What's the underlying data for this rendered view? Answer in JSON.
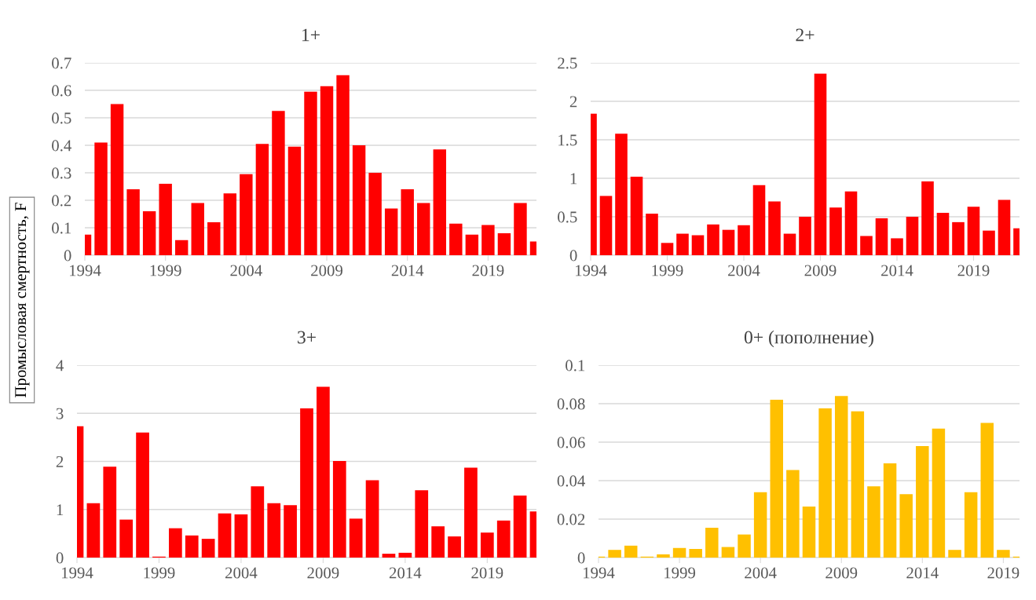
{
  "chart_data": [
    {
      "type": "bar",
      "title": "1+",
      "ylabel": "Промысловая смертность, F",
      "x": [
        1994,
        1995,
        1996,
        1997,
        1998,
        1999,
        2000,
        2001,
        2002,
        2003,
        2004,
        2005,
        2006,
        2007,
        2008,
        2009,
        2010,
        2011,
        2012,
        2013,
        2014,
        2015,
        2016,
        2017,
        2018,
        2019,
        2020,
        2021,
        2022
      ],
      "series": [
        {
          "color": "#ff0000",
          "values": [
            0.075,
            0.41,
            0.55,
            0.24,
            0.16,
            0.26,
            0.055,
            0.19,
            0.12,
            0.225,
            0.295,
            0.405,
            0.525,
            0.395,
            0.595,
            0.615,
            0.655,
            0.4,
            0.3,
            0.17,
            0.24,
            0.19,
            0.385,
            0.115,
            0.075,
            0.11,
            0.08,
            0.19,
            0.05
          ]
        }
      ],
      "xlim": [
        1994,
        2022
      ],
      "xticks": [
        1994,
        1999,
        2004,
        2009,
        2014,
        2019
      ],
      "ylim": [
        0,
        0.7
      ],
      "yticks": [
        0,
        0.1,
        0.2,
        0.3,
        0.4,
        0.5,
        0.6,
        0.7
      ],
      "grid": "y"
    },
    {
      "type": "bar",
      "title": "2+",
      "x": [
        1994,
        1995,
        1996,
        1997,
        1998,
        1999,
        2000,
        2001,
        2002,
        2003,
        2004,
        2005,
        2006,
        2007,
        2008,
        2009,
        2010,
        2011,
        2012,
        2013,
        2014,
        2015,
        2016,
        2017,
        2018,
        2019,
        2020,
        2021,
        2022
      ],
      "series": [
        {
          "color": "#ff0000",
          "values": [
            1.84,
            0.77,
            1.58,
            1.02,
            0.54,
            0.16,
            0.28,
            0.26,
            0.4,
            0.33,
            0.39,
            0.91,
            0.7,
            0.28,
            0.5,
            2.36,
            0.62,
            0.83,
            0.25,
            0.48,
            0.22,
            0.5,
            0.96,
            0.55,
            0.43,
            0.63,
            0.32,
            0.72,
            0.35
          ]
        }
      ],
      "xlim": [
        1994,
        2022
      ],
      "xticks": [
        1994,
        1999,
        2004,
        2009,
        2014,
        2019
      ],
      "ylim": [
        0,
        2.5
      ],
      "yticks": [
        0,
        0.5,
        1,
        1.5,
        2,
        2.5
      ],
      "grid": "y"
    },
    {
      "type": "bar",
      "title": "3+",
      "x": [
        1994,
        1995,
        1996,
        1997,
        1998,
        1999,
        2000,
        2001,
        2002,
        2003,
        2004,
        2005,
        2006,
        2007,
        2008,
        2009,
        2010,
        2011,
        2012,
        2013,
        2014,
        2015,
        2016,
        2017,
        2018,
        2019,
        2020,
        2021,
        2022
      ],
      "series": [
        {
          "color": "#ff0000",
          "values": [
            2.73,
            1.13,
            1.89,
            0.79,
            2.6,
            0.02,
            0.61,
            0.46,
            0.39,
            0.92,
            0.9,
            1.48,
            1.13,
            1.09,
            3.1,
            3.55,
            2.01,
            0.81,
            1.61,
            0.08,
            0.1,
            1.4,
            0.65,
            0.44,
            1.87,
            0.52,
            0.77,
            1.29,
            0.96
          ]
        }
      ],
      "xlim": [
        1994,
        2022
      ],
      "xticks": [
        1994,
        1999,
        2004,
        2009,
        2014,
        2019
      ],
      "ylim": [
        0,
        4
      ],
      "yticks": [
        0,
        1,
        2,
        3,
        4
      ],
      "grid": "y"
    },
    {
      "type": "bar",
      "title": "0+ (пополнение)",
      "x": [
        1994,
        1995,
        1996,
        1997,
        1998,
        1999,
        2000,
        2001,
        2002,
        2003,
        2004,
        2005,
        2006,
        2007,
        2008,
        2009,
        2010,
        2011,
        2012,
        2013,
        2014,
        2015,
        2016,
        2017,
        2018,
        2019,
        2020
      ],
      "series": [
        {
          "color": "#ffc000",
          "values": [
            0.0005,
            0.004,
            0.0062,
            0.0005,
            0.0017,
            0.005,
            0.0045,
            0.0155,
            0.0055,
            0.012,
            0.034,
            0.082,
            0.0455,
            0.0265,
            0.0775,
            0.084,
            0.076,
            0.037,
            0.049,
            0.033,
            0.058,
            0.067,
            0.004,
            0.034,
            0.07,
            0.004,
            0.0005
          ]
        }
      ],
      "xlim": [
        1994,
        2020
      ],
      "xticks": [
        1994,
        1999,
        2004,
        2009,
        2014,
        2019
      ],
      "ylim": [
        0,
        0.1
      ],
      "yticks": [
        0,
        0.02,
        0.04,
        0.06,
        0.08,
        0.1
      ],
      "grid": "y"
    }
  ]
}
